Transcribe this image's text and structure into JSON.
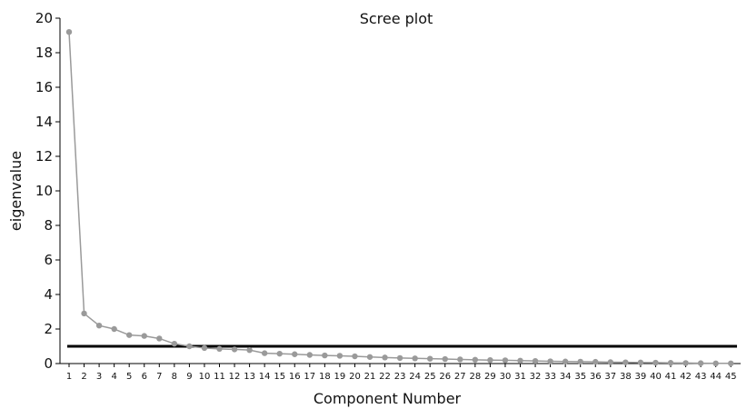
{
  "chart_data": {
    "type": "line",
    "title": "Scree plot",
    "xlabel": "Component Number",
    "ylabel": "eigenvalue",
    "ylim": [
      0,
      20
    ],
    "yticks": [
      0,
      2,
      4,
      6,
      8,
      10,
      12,
      14,
      16,
      18,
      20
    ],
    "x": [
      1,
      2,
      3,
      4,
      5,
      6,
      7,
      8,
      9,
      10,
      11,
      12,
      13,
      14,
      15,
      16,
      17,
      18,
      19,
      20,
      21,
      22,
      23,
      24,
      25,
      26,
      27,
      28,
      29,
      30,
      31,
      32,
      33,
      34,
      35,
      36,
      37,
      38,
      39,
      40,
      41,
      42,
      43,
      44,
      45
    ],
    "series": [
      {
        "values": [
          19.2,
          2.9,
          2.2,
          2.0,
          1.65,
          1.6,
          1.45,
          1.15,
          1.0,
          0.9,
          0.85,
          0.82,
          0.78,
          0.6,
          0.57,
          0.54,
          0.5,
          0.47,
          0.45,
          0.42,
          0.38,
          0.35,
          0.32,
          0.3,
          0.28,
          0.26,
          0.24,
          0.22,
          0.2,
          0.19,
          0.17,
          0.15,
          0.13,
          0.12,
          0.11,
          0.1,
          0.08,
          0.07,
          0.06,
          0.05,
          0.04,
          0.03,
          0.02,
          0.01,
          0.01
        ],
        "color": "#9a9a9a"
      }
    ],
    "reference_line": {
      "y": 1,
      "color": "#000000"
    },
    "grid": false,
    "legend": "none"
  }
}
